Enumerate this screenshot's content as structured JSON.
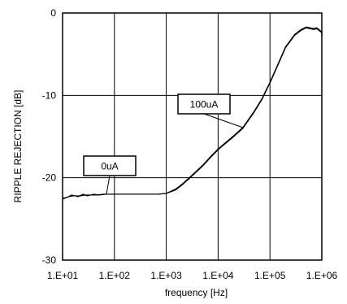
{
  "chart_data": {
    "type": "line",
    "title": "",
    "xlabel": "frequency [Hz]",
    "ylabel": "RIPPLE REJECTION  [dB]",
    "xscale": "log",
    "xlim": [
      10,
      1000000
    ],
    "ylim": [
      -30,
      0
    ],
    "grid": true,
    "x_ticks": [
      10,
      100,
      1000,
      10000,
      100000,
      1000000
    ],
    "x_tick_labels": [
      "1.E+01",
      "1.E+02",
      "1.E+03",
      "1.E+04",
      "1.E+05",
      "1.E+06"
    ],
    "y_ticks": [
      -30,
      -20,
      -10,
      0
    ],
    "y_tick_labels": [
      "-30",
      "-20",
      "-10",
      "0"
    ],
    "series": [
      {
        "name": "0uA",
        "color": "#000000",
        "points": [
          [
            10,
            -22.5
          ],
          [
            12,
            -22.4
          ],
          [
            15,
            -22.1
          ],
          [
            20,
            -22.3
          ],
          [
            25,
            -22.0
          ],
          [
            30,
            -22.2
          ],
          [
            40,
            -22.0
          ],
          [
            50,
            -22.1
          ],
          [
            70,
            -22.0
          ],
          [
            100,
            -22.0
          ],
          [
            200,
            -22.0
          ],
          [
            400,
            -22.0
          ],
          [
            700,
            -22.0
          ],
          [
            1000,
            -21.9
          ],
          [
            1500,
            -21.5
          ],
          [
            2000,
            -20.9
          ],
          [
            3000,
            -19.9
          ],
          [
            5000,
            -18.6
          ],
          [
            7000,
            -17.6
          ],
          [
            10000,
            -16.6
          ],
          [
            20000,
            -15.0
          ],
          [
            30000,
            -14.0
          ],
          [
            50000,
            -12.0
          ],
          [
            70000,
            -10.5
          ],
          [
            100000,
            -8.5
          ],
          [
            150000,
            -6.0
          ],
          [
            200000,
            -4.2
          ],
          [
            300000,
            -2.7
          ],
          [
            400000,
            -2.1
          ],
          [
            500000,
            -1.8
          ],
          [
            700000,
            -2.0
          ],
          [
            800000,
            -1.9
          ],
          [
            1000000,
            -2.4
          ],
          [
            1300000,
            -2.8
          ]
        ]
      },
      {
        "name": "100uA",
        "color": "#000000",
        "points": [
          [
            10,
            -22.6
          ],
          [
            13,
            -22.3
          ],
          [
            16,
            -22.2
          ],
          [
            22,
            -22.2
          ],
          [
            28,
            -22.1
          ],
          [
            35,
            -22.1
          ],
          [
            45,
            -22.1
          ],
          [
            60,
            -22.0
          ],
          [
            80,
            -22.0
          ],
          [
            100,
            -22.0
          ],
          [
            200,
            -22.0
          ],
          [
            400,
            -22.0
          ],
          [
            700,
            -22.0
          ],
          [
            1000,
            -21.9
          ],
          [
            1500,
            -21.4
          ],
          [
            2000,
            -20.8
          ],
          [
            3000,
            -19.8
          ],
          [
            5000,
            -18.5
          ],
          [
            7000,
            -17.5
          ],
          [
            10000,
            -16.5
          ],
          [
            20000,
            -14.9
          ],
          [
            30000,
            -13.9
          ],
          [
            50000,
            -11.9
          ],
          [
            70000,
            -10.4
          ],
          [
            100000,
            -8.4
          ],
          [
            150000,
            -5.9
          ],
          [
            200000,
            -4.1
          ],
          [
            300000,
            -2.6
          ],
          [
            400000,
            -2.0
          ],
          [
            500000,
            -1.7
          ],
          [
            700000,
            -1.9
          ],
          [
            800000,
            -1.8
          ],
          [
            1000000,
            -2.3
          ],
          [
            1300000,
            -2.9
          ]
        ]
      }
    ],
    "annotations": [
      {
        "text": "0uA",
        "target": [
          70,
          -22.0
        ]
      },
      {
        "text": "100uA",
        "target": [
          30000,
          -13.9
        ]
      }
    ]
  }
}
